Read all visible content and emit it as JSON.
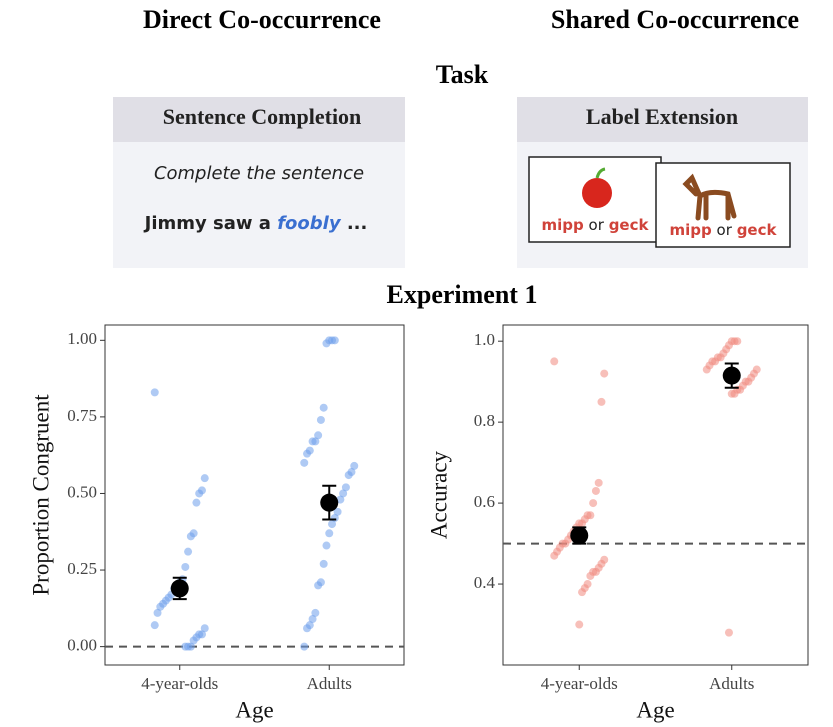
{
  "columns": [
    "Direct Co-occurrence",
    "Shared Co-occurrence"
  ],
  "task": {
    "title": "Task",
    "panels": [
      {
        "title": "Sentence Completion",
        "instruction": "Complete the sentence",
        "sentence_start": "Jimmy saw a",
        "sentence_word": "foobly",
        "sentence_end": "..."
      },
      {
        "title": "Label Extension",
        "cards": [
          {
            "label_a": "mipp",
            "or": "or",
            "label_b": "geck"
          },
          {
            "label_a": "mipp",
            "or": "or",
            "label_b": "geck"
          }
        ]
      }
    ]
  },
  "experiment_title": "Experiment 1",
  "chart_data": [
    {
      "type": "strip",
      "x_label": "Age",
      "y_label": "Proportion Congruent",
      "categories": [
        "4-year-olds",
        "Adults"
      ],
      "point_color": "#6d9eeb",
      "points": [
        [
          0.83,
          0.55,
          0.51,
          0.5,
          0.47,
          0.37,
          0.36,
          0.31,
          0.26,
          0.22,
          0.21,
          0.2,
          0.19,
          0.17,
          0.16,
          0.15,
          0.14,
          0.13,
          0.11,
          0.07,
          0.06,
          0.04,
          0.04,
          0.03,
          0.02,
          0,
          0,
          0
        ],
        [
          1,
          1,
          1,
          0.99,
          0.78,
          0.74,
          0.69,
          0.67,
          0.67,
          0.64,
          0.63,
          0.6,
          0.59,
          0.57,
          0.56,
          0.52,
          0.5,
          0.48,
          0.44,
          0.42,
          0.4,
          0.37,
          0.33,
          0.27,
          0.21,
          0.2,
          0.11,
          0.09,
          0.07,
          0.06,
          0
        ]
      ],
      "means": [
        0.19,
        0.47
      ],
      "errors": [
        0.035,
        0.055
      ],
      "reference_line": 0,
      "ylim": [
        -0.06,
        1.05
      ],
      "yticks": [
        {
          "value": 0,
          "label": "0.00"
        },
        {
          "value": 0.25,
          "label": "0.25"
        },
        {
          "value": 0.5,
          "label": "0.50"
        },
        {
          "value": 0.75,
          "label": "0.75"
        },
        {
          "value": 1,
          "label": "1.00"
        }
      ]
    },
    {
      "type": "strip",
      "x_label": "Age",
      "y_label": "Accuracy",
      "categories": [
        "4-year-olds",
        "Adults"
      ],
      "point_color": "#f08a80",
      "points": [
        [
          0.95,
          0.92,
          0.85,
          0.65,
          0.63,
          0.6,
          0.57,
          0.57,
          0.56,
          0.55,
          0.55,
          0.54,
          0.53,
          0.52,
          0.51,
          0.5,
          0.5,
          0.49,
          0.48,
          0.47,
          0.46,
          0.45,
          0.44,
          0.43,
          0.43,
          0.42,
          0.4,
          0.39,
          0.38,
          0.3
        ],
        [
          1,
          1,
          1,
          0.99,
          0.98,
          0.97,
          0.96,
          0.96,
          0.95,
          0.95,
          0.94,
          0.93,
          0.93,
          0.92,
          0.91,
          0.9,
          0.9,
          0.89,
          0.88,
          0.88,
          0.87,
          0.87,
          0.28
        ]
      ],
      "means": [
        0.52,
        0.915
      ],
      "errors": [
        0.02,
        0.03
      ],
      "reference_line": 0.5,
      "ylim": [
        0.2,
        1.04
      ],
      "yticks": [
        0.4,
        0.6,
        0.8,
        {
          "value": 1,
          "label": "1.0"
        }
      ]
    }
  ]
}
